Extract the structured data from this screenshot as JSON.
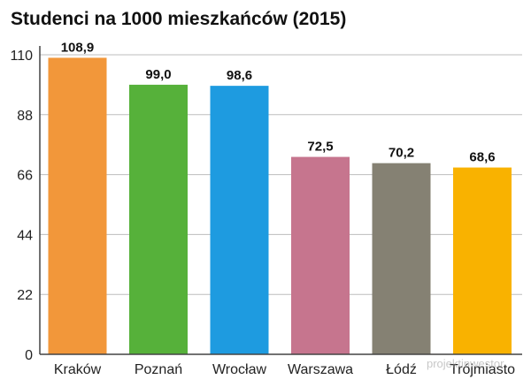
{
  "chart_data": {
    "type": "bar",
    "title": "Studenci na 1000 mieszkańców (2015)",
    "categories": [
      "Kraków",
      "Poznań",
      "Wrocław",
      "Warszawa",
      "Łódź",
      "Trójmiasto"
    ],
    "values": [
      108.9,
      99.0,
      98.6,
      72.5,
      70.2,
      68.6
    ],
    "value_labels": [
      "108,9",
      "99,0",
      "98,6",
      "72,5",
      "70,2",
      "68,6"
    ],
    "colors": [
      "#F2973A",
      "#56B13A",
      "#1E9BE0",
      "#C6758E",
      "#858173",
      "#F9B200"
    ],
    "ylim": [
      0,
      110
    ],
    "yticks": [
      0,
      22,
      44,
      66,
      88,
      110
    ],
    "ytick_labels": [
      "0",
      "22",
      "44",
      "66",
      "88",
      "110"
    ],
    "xlabel": "",
    "ylabel": "",
    "grid": true,
    "legend": "none"
  },
  "watermark": {
    "text": "projektinwestor"
  }
}
